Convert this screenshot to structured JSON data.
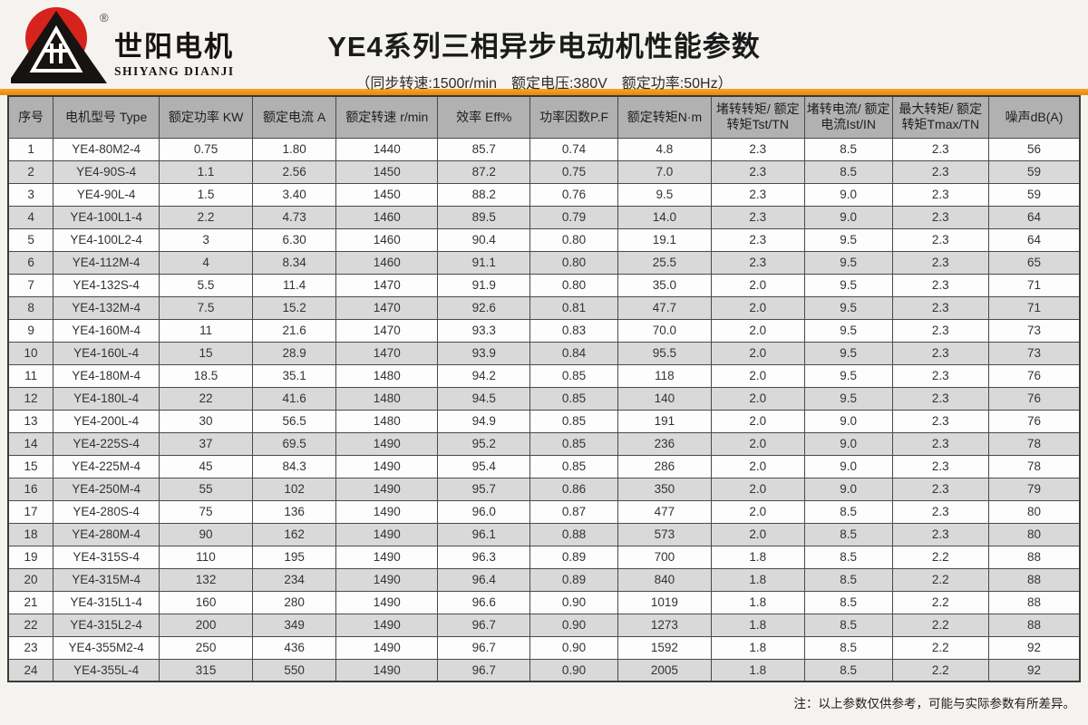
{
  "logo": {
    "brand_cn": "世阳电机",
    "brand_en": "SHIYANG DIANJI",
    "registered_mark": "®"
  },
  "header": {
    "title": "YE4系列三相异步电动机性能参数",
    "subtitle": "（同步转速:1500r/min　额定电压:380V　额定功率:50Hz）"
  },
  "table": {
    "columns": [
      "序号",
      "电机型号 Type",
      "额定功率 KW",
      "额定电流 A",
      "额定转速 r/min",
      "效率 Eff%",
      "功率因数P.F",
      "额定转矩N·m",
      "堵转转矩/ 额定转矩Tst/TN",
      "堵转电流/ 额定电流Ist/IN",
      "最大转矩/ 额定转矩Tmax/TN",
      "噪声dB(A)"
    ],
    "rows": [
      [
        "1",
        "YE4-80M2-4",
        "0.75",
        "1.80",
        "1440",
        "85.7",
        "0.74",
        "4.8",
        "2.3",
        "8.5",
        "2.3",
        "56"
      ],
      [
        "2",
        "YE4-90S-4",
        "1.1",
        "2.56",
        "1450",
        "87.2",
        "0.75",
        "7.0",
        "2.3",
        "8.5",
        "2.3",
        "59"
      ],
      [
        "3",
        "YE4-90L-4",
        "1.5",
        "3.40",
        "1450",
        "88.2",
        "0.76",
        "9.5",
        "2.3",
        "9.0",
        "2.3",
        "59"
      ],
      [
        "4",
        "YE4-100L1-4",
        "2.2",
        "4.73",
        "1460",
        "89.5",
        "0.79",
        "14.0",
        "2.3",
        "9.0",
        "2.3",
        "64"
      ],
      [
        "5",
        "YE4-100L2-4",
        "3",
        "6.30",
        "1460",
        "90.4",
        "0.80",
        "19.1",
        "2.3",
        "9.5",
        "2.3",
        "64"
      ],
      [
        "6",
        "YE4-112M-4",
        "4",
        "8.34",
        "1460",
        "91.1",
        "0.80",
        "25.5",
        "2.3",
        "9.5",
        "2.3",
        "65"
      ],
      [
        "7",
        "YE4-132S-4",
        "5.5",
        "11.4",
        "1470",
        "91.9",
        "0.80",
        "35.0",
        "2.0",
        "9.5",
        "2.3",
        "71"
      ],
      [
        "8",
        "YE4-132M-4",
        "7.5",
        "15.2",
        "1470",
        "92.6",
        "0.81",
        "47.7",
        "2.0",
        "9.5",
        "2.3",
        "71"
      ],
      [
        "9",
        "YE4-160M-4",
        "11",
        "21.6",
        "1470",
        "93.3",
        "0.83",
        "70.0",
        "2.0",
        "9.5",
        "2.3",
        "73"
      ],
      [
        "10",
        "YE4-160L-4",
        "15",
        "28.9",
        "1470",
        "93.9",
        "0.84",
        "95.5",
        "2.0",
        "9.5",
        "2.3",
        "73"
      ],
      [
        "11",
        "YE4-180M-4",
        "18.5",
        "35.1",
        "1480",
        "94.2",
        "0.85",
        "118",
        "2.0",
        "9.5",
        "2.3",
        "76"
      ],
      [
        "12",
        "YE4-180L-4",
        "22",
        "41.6",
        "1480",
        "94.5",
        "0.85",
        "140",
        "2.0",
        "9.5",
        "2.3",
        "76"
      ],
      [
        "13",
        "YE4-200L-4",
        "30",
        "56.5",
        "1480",
        "94.9",
        "0.85",
        "191",
        "2.0",
        "9.0",
        "2.3",
        "76"
      ],
      [
        "14",
        "YE4-225S-4",
        "37",
        "69.5",
        "1490",
        "95.2",
        "0.85",
        "236",
        "2.0",
        "9.0",
        "2.3",
        "78"
      ],
      [
        "15",
        "YE4-225M-4",
        "45",
        "84.3",
        "1490",
        "95.4",
        "0.85",
        "286",
        "2.0",
        "9.0",
        "2.3",
        "78"
      ],
      [
        "16",
        "YE4-250M-4",
        "55",
        "102",
        "1490",
        "95.7",
        "0.86",
        "350",
        "2.0",
        "9.0",
        "2.3",
        "79"
      ],
      [
        "17",
        "YE4-280S-4",
        "75",
        "136",
        "1490",
        "96.0",
        "0.87",
        "477",
        "2.0",
        "8.5",
        "2.3",
        "80"
      ],
      [
        "18",
        "YE4-280M-4",
        "90",
        "162",
        "1490",
        "96.1",
        "0.88",
        "573",
        "2.0",
        "8.5",
        "2.3",
        "80"
      ],
      [
        "19",
        "YE4-315S-4",
        "110",
        "195",
        "1490",
        "96.3",
        "0.89",
        "700",
        "1.8",
        "8.5",
        "2.2",
        "88"
      ],
      [
        "20",
        "YE4-315M-4",
        "132",
        "234",
        "1490",
        "96.4",
        "0.89",
        "840",
        "1.8",
        "8.5",
        "2.2",
        "88"
      ],
      [
        "21",
        "YE4-315L1-4",
        "160",
        "280",
        "1490",
        "96.6",
        "0.90",
        "1019",
        "1.8",
        "8.5",
        "2.2",
        "88"
      ],
      [
        "22",
        "YE4-315L2-4",
        "200",
        "349",
        "1490",
        "96.7",
        "0.90",
        "1273",
        "1.8",
        "8.5",
        "2.2",
        "88"
      ],
      [
        "23",
        "YE4-355M2-4",
        "250",
        "436",
        "1490",
        "96.7",
        "0.90",
        "1592",
        "1.8",
        "8.5",
        "2.2",
        "92"
      ],
      [
        "24",
        "YE4-355L-4",
        "315",
        "550",
        "1490",
        "96.7",
        "0.90",
        "2005",
        "1.8",
        "8.5",
        "2.2",
        "92"
      ]
    ]
  },
  "footer": {
    "note": "注：以上参数仅供参考，可能与实际参数有所差异。"
  },
  "colors": {
    "accent_orange": "#ef9226",
    "brand_red": "#d7231d",
    "header_row_bg": "#b1b1b1",
    "row_alt_bg": "#d9d9d9",
    "border": "#4a4a4a"
  }
}
